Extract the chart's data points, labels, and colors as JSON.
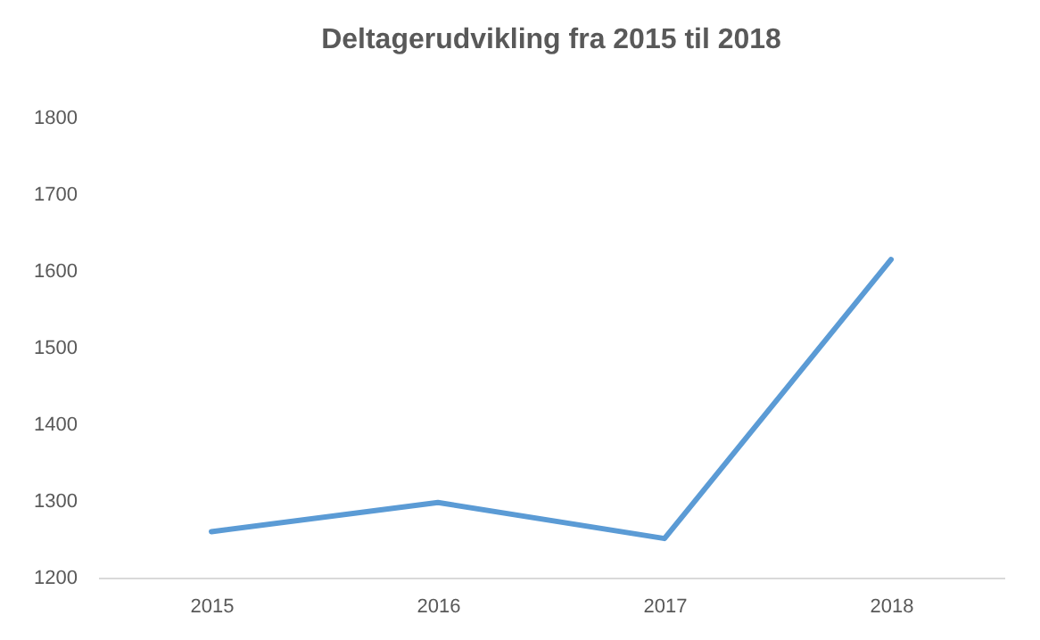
{
  "chart_data": {
    "type": "line",
    "title": "Deltagerudvikling fra 2015 til 2018",
    "categories": [
      "2015",
      "2016",
      "2017",
      "2018"
    ],
    "series": [
      {
        "color": "#5b9bd5",
        "values": [
          1260,
          1298,
          1251,
          1615
        ]
      }
    ],
    "ylim": [
      1200,
      1800
    ],
    "yticks": [
      1200,
      1300,
      1400,
      1500,
      1600,
      1700,
      1800
    ],
    "grid": false,
    "legend": false,
    "marker": "none",
    "line_style": "solid"
  }
}
